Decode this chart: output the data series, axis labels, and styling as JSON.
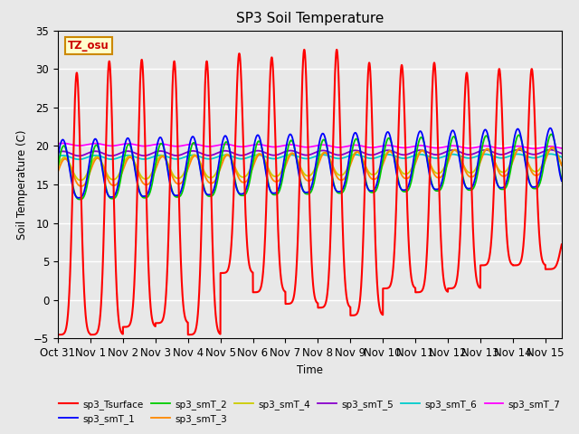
{
  "title": "SP3 Soil Temperature",
  "ylabel": "Soil Temperature (C)",
  "xlabel": "Time",
  "timezone_label": "TZ_osu",
  "ylim": [
    -5,
    35
  ],
  "xlim": [
    0,
    15.5
  ],
  "xtick_labels": [
    "Oct 31",
    "Nov 1",
    "Nov 2",
    "Nov 3",
    "Nov 4",
    "Nov 5",
    "Nov 6",
    "Nov 7",
    "Nov 8",
    "Nov 9",
    "Nov 10",
    "Nov 11",
    "Nov 12",
    "Nov 13",
    "Nov 14",
    "Nov 15"
  ],
  "xtick_positions": [
    0,
    1,
    2,
    3,
    4,
    5,
    6,
    7,
    8,
    9,
    10,
    11,
    12,
    13,
    14,
    15
  ],
  "ytick_positions": [
    -5,
    0,
    5,
    10,
    15,
    20,
    25,
    30,
    35
  ],
  "series_colors": {
    "sp3_Tsurface": "#ff0000",
    "sp3_smT_1": "#0000ff",
    "sp3_smT_2": "#00cc00",
    "sp3_smT_3": "#ff8800",
    "sp3_smT_4": "#cccc00",
    "sp3_smT_5": "#8800cc",
    "sp3_smT_6": "#00cccc",
    "sp3_smT_7": "#ff00ff"
  },
  "background_color": "#e8e8e8",
  "plot_bg_color": "#e8e8e8",
  "grid_color": "#ffffff"
}
